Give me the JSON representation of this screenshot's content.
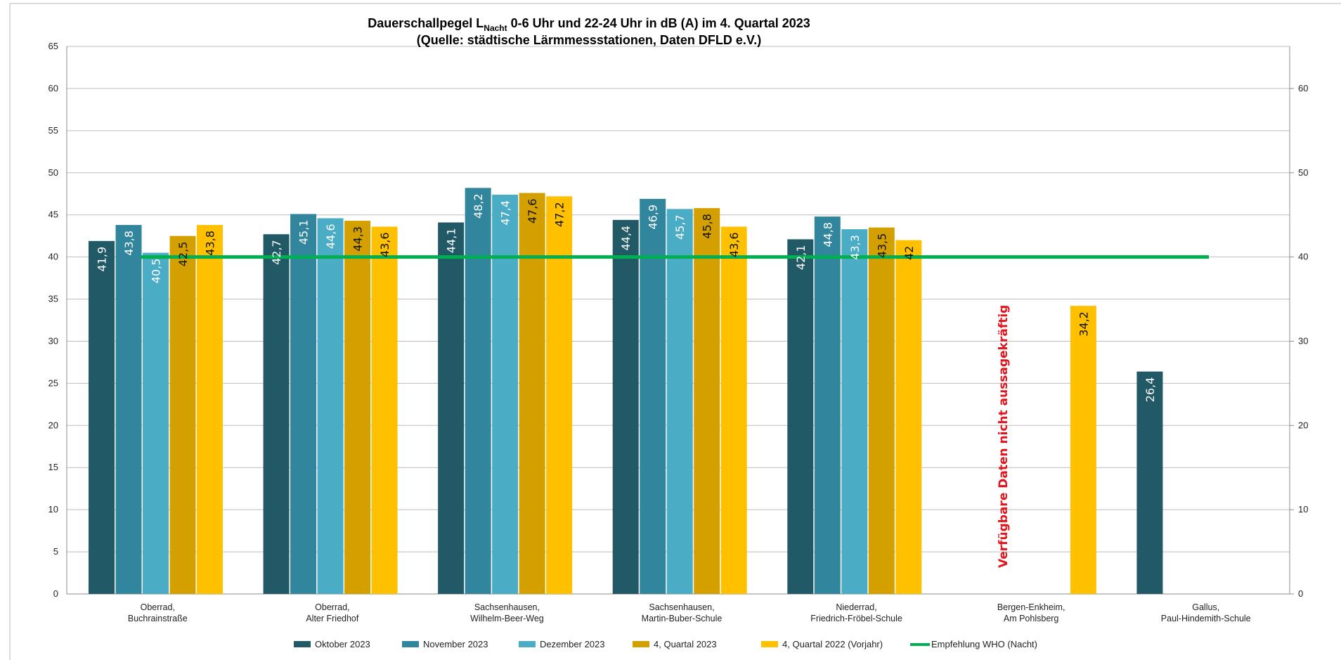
{
  "chart_data": {
    "type": "bar",
    "title": {
      "pre": "Dauerschallpegel L",
      "sub": "Nacht",
      "post": " 0-6 Uhr und 22-24 Uhr in dB (A) im 4. Quartal 2023",
      "line2": "(Quelle: städtische Lärmmessstationen, Daten DFLD e.V.)"
    },
    "categories": [
      [
        "Oberrad,",
        "Buchrainstraße"
      ],
      [
        "Oberrad,",
        "Alter Friedhof"
      ],
      [
        "Sachsenhausen,",
        "Wilhelm-Beer-Weg"
      ],
      [
        "Sachsenhausen,",
        "Martin-Buber-Schule"
      ],
      [
        "Niederrad,",
        "Friedrich-Fröbel-Schule"
      ],
      [
        "Bergen-Enkheim,",
        "Am Pohlsberg"
      ],
      [
        "Gallus,",
        "Paul-Hindemith-Schule"
      ]
    ],
    "series": [
      {
        "name": "Oktober 2023",
        "color": "#215967",
        "labelColor": "#ffffff",
        "values": [
          41.9,
          42.7,
          44.1,
          44.4,
          42.1,
          null,
          26.4
        ],
        "labels": [
          "41,9",
          "42,7",
          "44,1",
          "44,4",
          "42,1",
          null,
          "26,4"
        ]
      },
      {
        "name": "November 2023",
        "color": "#31859c",
        "labelColor": "#ffffff",
        "values": [
          43.8,
          45.1,
          48.2,
          46.9,
          44.8,
          null,
          null
        ],
        "labels": [
          "43,8",
          "45,1",
          "48,2",
          "46,9",
          "44,8",
          null,
          null
        ]
      },
      {
        "name": "Dezember 2023",
        "color": "#4bacc6",
        "labelColor": "#ffffff",
        "values": [
          40.5,
          44.6,
          47.4,
          45.7,
          43.3,
          null,
          null
        ],
        "labels": [
          "40,5",
          "44,6",
          "47,4",
          "45,7",
          "43,3",
          null,
          null
        ]
      },
      {
        "name": "4, Quartal 2023",
        "color": "#d4a000",
        "labelColor": "#111111",
        "values": [
          42.5,
          44.3,
          47.6,
          45.8,
          43.5,
          null,
          null
        ],
        "labels": [
          "42,5",
          "44,3",
          "47,6",
          "45,8",
          "43,5",
          null,
          null
        ]
      },
      {
        "name": "4, Quartal 2022 (Vorjahr)",
        "color": "#ffc000",
        "labelColor": "#111111",
        "values": [
          43.8,
          43.6,
          47.2,
          43.6,
          42,
          34.2,
          null
        ],
        "labels": [
          "43,8",
          "43,6",
          "47,2",
          "43,6",
          "42",
          "34,2",
          null
        ]
      }
    ],
    "reference_line": {
      "name": "Empfehlung WHO (Nacht)",
      "value": 40,
      "color": "#00b050"
    },
    "left_axis": {
      "ylim": [
        0,
        65
      ],
      "ticks": [
        "0",
        "5",
        "10",
        "15",
        "20",
        "25",
        "30",
        "35",
        "40",
        "45",
        "50",
        "55",
        "60",
        "65"
      ]
    },
    "right_axis": {
      "ylim": [
        0,
        65
      ],
      "ticks": [
        "0",
        "10",
        "20",
        "30",
        "40",
        "50",
        "60"
      ]
    },
    "annotation": {
      "text": "Verfügbare Daten nicht aussagekräftig",
      "color": "#e3141b",
      "category_index": 5
    },
    "grid": true,
    "legend_position": "bottom"
  }
}
